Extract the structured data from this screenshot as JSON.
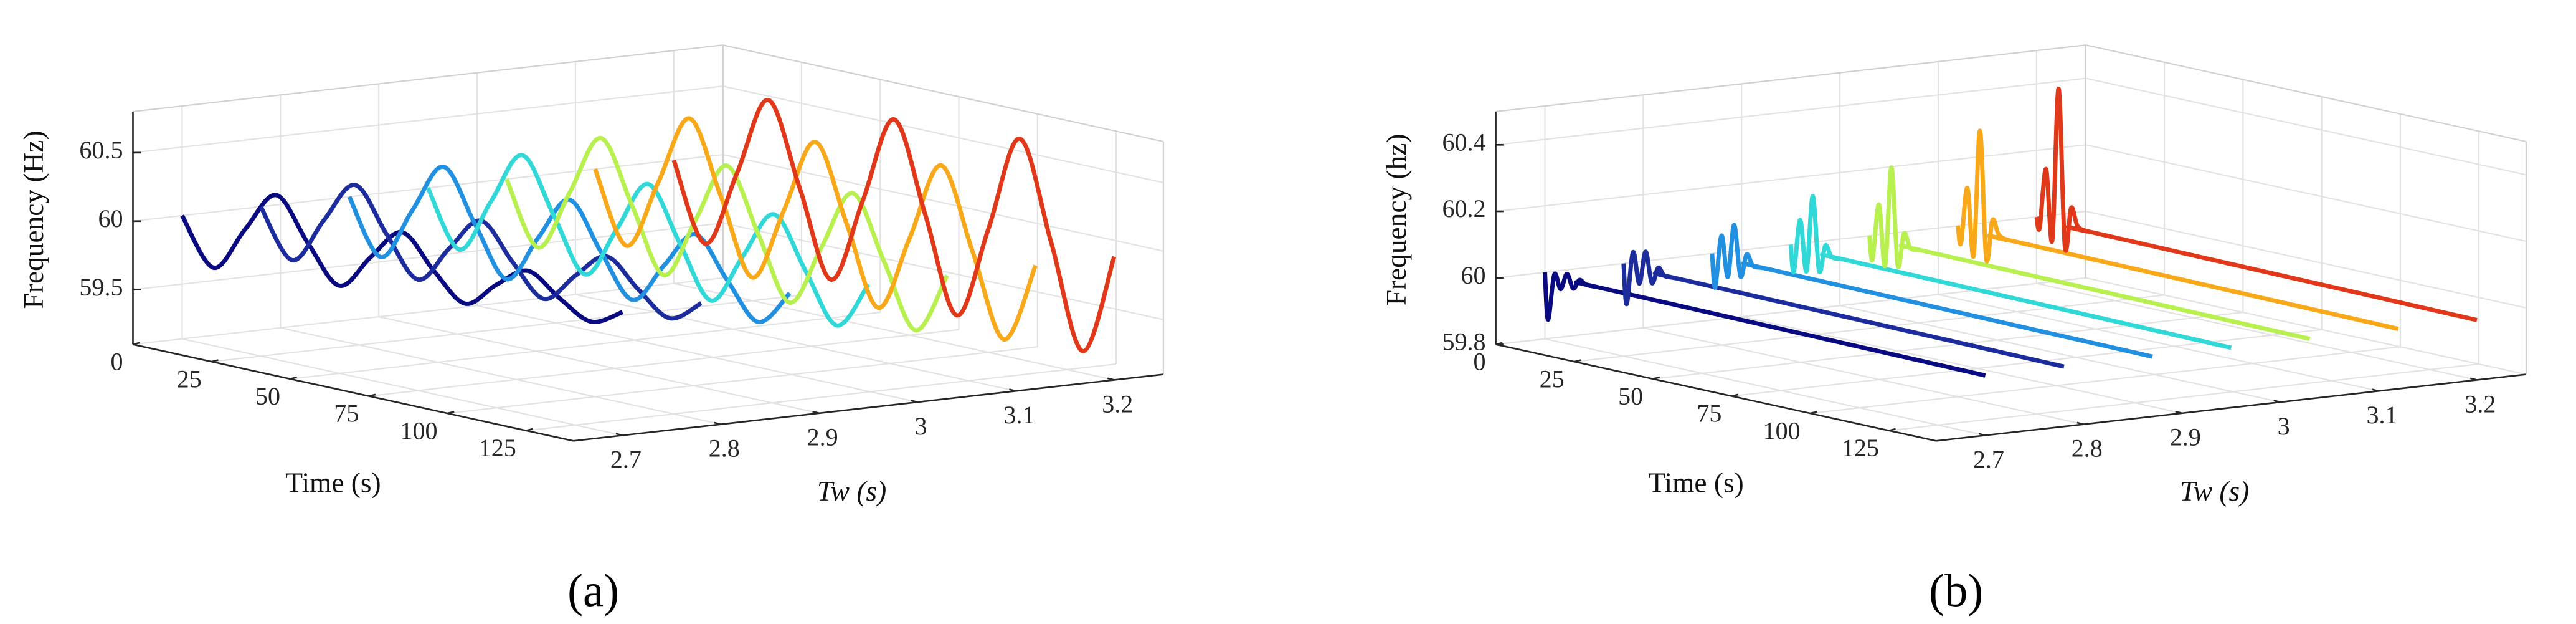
{
  "chart_data": [
    {
      "type": "line3d",
      "label": "(a)",
      "xlabel": "Time (s)",
      "ylabel": "Tw (s)",
      "zlabel": "Frequency (Hz)",
      "x": [
        0,
        10,
        20,
        30,
        40,
        50,
        60,
        70,
        80,
        90,
        100,
        110,
        120,
        130,
        140
      ],
      "xlim": [
        0,
        140
      ],
      "xticks": [
        0,
        25,
        50,
        75,
        100,
        125
      ],
      "ylim": [
        2.65,
        3.25
      ],
      "yticks": [
        2.7,
        2.8,
        2.9,
        3,
        3.1,
        3.2
      ],
      "zlim": [
        59.1,
        60.8
      ],
      "zticks": [
        59.5,
        60,
        60.5
      ],
      "grid": true,
      "series": [
        {
          "tw": 2.7,
          "color": "#0a0a80",
          "values": [
            60,
            59.67,
            60,
            60.3,
            60,
            59.74,
            60,
            60.23,
            60,
            59.81,
            60,
            60.15,
            60,
            59.88,
            60
          ]
        },
        {
          "tw": 2.78,
          "color": "#1c2c9c",
          "values": [
            60,
            59.66,
            60,
            60.31,
            60,
            59.72,
            60,
            60.25,
            60,
            59.78,
            60,
            60.19,
            60,
            59.84,
            60
          ]
        },
        {
          "tw": 2.87,
          "color": "#2290e0",
          "values": [
            60,
            59.61,
            60,
            60.37,
            60,
            59.65,
            60,
            60.33,
            60,
            59.7,
            60,
            60.28,
            60,
            59.74,
            60
          ]
        },
        {
          "tw": 2.95,
          "color": "#30d8d8",
          "values": [
            60,
            59.6,
            60,
            60.39,
            60,
            59.62,
            60,
            60.38,
            60,
            59.63,
            60,
            60.36,
            60,
            59.65,
            60
          ]
        },
        {
          "tw": 3.03,
          "color": "#b8f050",
          "values": [
            60,
            59.55,
            60,
            60.45,
            60,
            59.55,
            60,
            60.45,
            60,
            59.55,
            60,
            60.45,
            60,
            59.55,
            60
          ]
        },
        {
          "tw": 3.12,
          "color": "#f8a818",
          "values": [
            60,
            59.49,
            60,
            60.52,
            60,
            59.46,
            60,
            60.55,
            60,
            59.44,
            60,
            60.58,
            60,
            59.41,
            60
          ]
        },
        {
          "tw": 3.2,
          "color": "#e03818",
          "values": [
            60,
            59.44,
            60,
            60.59,
            60,
            59.38,
            60,
            60.65,
            60,
            59.32,
            60,
            60.71,
            60,
            59.26,
            60
          ]
        }
      ]
    },
    {
      "type": "line3d",
      "label": "(b)",
      "xlabel": "Time (s)",
      "ylabel": "Tw (s)",
      "zlabel": "Frequency (hz)",
      "x": [
        0,
        1,
        3,
        5,
        7,
        9,
        11,
        13,
        16,
        20,
        140
      ],
      "xlim": [
        0,
        140
      ],
      "xticks": [
        0,
        25,
        50,
        75,
        100,
        125
      ],
      "ylim": [
        2.65,
        3.25
      ],
      "yticks": [
        2.7,
        2.8,
        2.9,
        3,
        3.1,
        3.2
      ],
      "zlim": [
        59.8,
        60.5
      ],
      "zticks": [
        59.8,
        60,
        60.2,
        60.4
      ],
      "grid": true,
      "series": [
        {
          "tw": 2.7,
          "color": "#0a0a80",
          "values": [
            60,
            59.86,
            60.0,
            59.96,
            60.01,
            59.97,
            60.0,
            59.99,
            59.99,
            59.99,
            59.98
          ]
        },
        {
          "tw": 2.78,
          "color": "#1c2c9c",
          "values": [
            60,
            59.88,
            60.04,
            59.95,
            60.05,
            59.96,
            60.01,
            59.99,
            59.99,
            59.99,
            59.98
          ]
        },
        {
          "tw": 2.87,
          "color": "#2290e0",
          "values": [
            60,
            59.9,
            60.06,
            59.94,
            60.1,
            59.95,
            60.02,
            59.99,
            59.99,
            59.99,
            59.98
          ]
        },
        {
          "tw": 2.95,
          "color": "#30d8d8",
          "values": [
            60,
            59.92,
            60.08,
            59.93,
            60.16,
            59.94,
            60.02,
            59.99,
            59.99,
            59.99,
            59.98
          ]
        },
        {
          "tw": 3.03,
          "color": "#b8f050",
          "values": [
            60,
            59.93,
            60.1,
            59.92,
            60.22,
            59.93,
            60.03,
            59.99,
            59.99,
            59.99,
            59.98
          ]
        },
        {
          "tw": 3.12,
          "color": "#f8a818",
          "values": [
            60,
            59.95,
            60.12,
            59.92,
            60.3,
            59.92,
            60.04,
            60.0,
            59.99,
            59.99,
            59.98
          ]
        },
        {
          "tw": 3.2,
          "color": "#e03818",
          "values": [
            60,
            59.97,
            60.15,
            59.94,
            60.4,
            59.93,
            60.05,
            60.0,
            59.99,
            59.99,
            59.98
          ]
        }
      ]
    }
  ]
}
